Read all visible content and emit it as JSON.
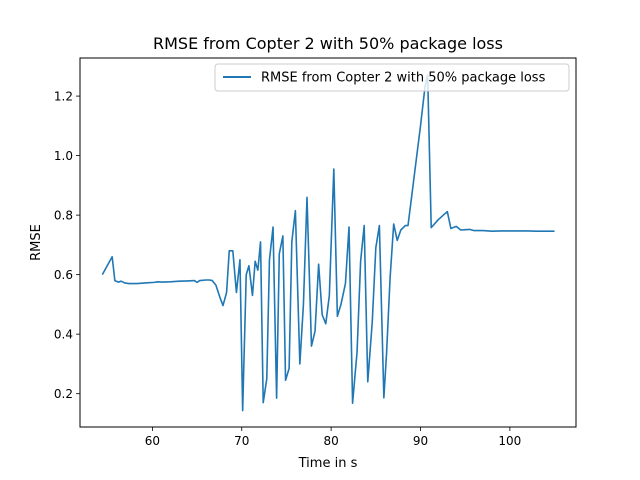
{
  "chart_data": {
    "type": "line",
    "title": "RMSE from Copter 2 with 50% package loss",
    "xlabel": "Time in s",
    "ylabel": "RMSE",
    "xlim": [
      51.9,
      107.4
    ],
    "ylim": [
      0.088,
      1.328
    ],
    "xticks": [
      60,
      70,
      80,
      90,
      100
    ],
    "yticks": [
      0.2,
      0.4,
      0.6,
      0.8,
      1.0,
      1.2
    ],
    "xtick_labels": [
      "60",
      "70",
      "80",
      "90",
      "100"
    ],
    "ytick_labels": [
      "0.2",
      "0.4",
      "0.6",
      "0.8",
      "1.0",
      "1.2"
    ],
    "grid": false,
    "legend_position": "top-right",
    "series_color": "#1f77b4",
    "series": [
      {
        "name": "RMSE from Copter 2 with 50% package loss",
        "x": [
          54.4,
          55.5,
          55.8,
          56.2,
          56.5,
          56.9,
          57.4,
          58.3,
          59.2,
          60.2,
          60.6,
          61.1,
          62.0,
          63.0,
          64.0,
          64.7,
          65.0,
          65.3,
          66.0,
          66.4,
          66.7,
          67.1,
          67.6,
          67.9,
          68.3,
          68.6,
          69.0,
          69.4,
          69.8,
          70.1,
          70.5,
          70.8,
          71.2,
          71.5,
          71.8,
          72.1,
          72.4,
          72.8,
          73.1,
          73.5,
          73.9,
          74.2,
          74.6,
          74.9,
          75.3,
          75.6,
          76.0,
          76.5,
          76.9,
          77.3,
          77.8,
          78.2,
          78.6,
          79.0,
          79.4,
          79.8,
          80.3,
          80.7,
          81.1,
          81.6,
          82.0,
          82.4,
          82.9,
          83.3,
          83.7,
          84.1,
          84.6,
          85.0,
          85.4,
          85.9,
          86.2,
          86.6,
          87.0,
          87.4,
          87.8,
          88.3,
          88.6,
          89.0,
          89.5,
          90.0,
          90.5,
          90.8,
          91.2,
          92.0,
          93.0,
          93.4,
          94.0,
          94.5,
          95.0,
          95.5,
          96.0,
          97.0,
          98.0,
          99.0,
          100.0,
          101.0,
          102.0,
          103.0,
          104.0,
          105.0
        ],
        "values": [
          0.6,
          0.66,
          0.58,
          0.575,
          0.578,
          0.572,
          0.57,
          0.57,
          0.572,
          0.574,
          0.576,
          0.575,
          0.576,
          0.578,
          0.579,
          0.58,
          0.574,
          0.58,
          0.582,
          0.582,
          0.58,
          0.565,
          0.52,
          0.496,
          0.54,
          0.68,
          0.68,
          0.54,
          0.65,
          0.143,
          0.6,
          0.63,
          0.53,
          0.645,
          0.615,
          0.71,
          0.17,
          0.25,
          0.65,
          0.76,
          0.185,
          0.67,
          0.73,
          0.245,
          0.285,
          0.71,
          0.815,
          0.3,
          0.5,
          0.86,
          0.36,
          0.41,
          0.635,
          0.465,
          0.435,
          0.53,
          0.955,
          0.46,
          0.5,
          0.57,
          0.76,
          0.168,
          0.34,
          0.645,
          0.765,
          0.24,
          0.44,
          0.69,
          0.765,
          0.186,
          0.335,
          0.59,
          0.77,
          0.715,
          0.75,
          0.765,
          0.765,
          0.86,
          0.98,
          1.1,
          1.23,
          1.27,
          0.758,
          0.785,
          0.812,
          0.755,
          0.762,
          0.75,
          0.751,
          0.752,
          0.748,
          0.748,
          0.746,
          0.747,
          0.747,
          0.747,
          0.747,
          0.746,
          0.746,
          0.746
        ]
      }
    ]
  }
}
